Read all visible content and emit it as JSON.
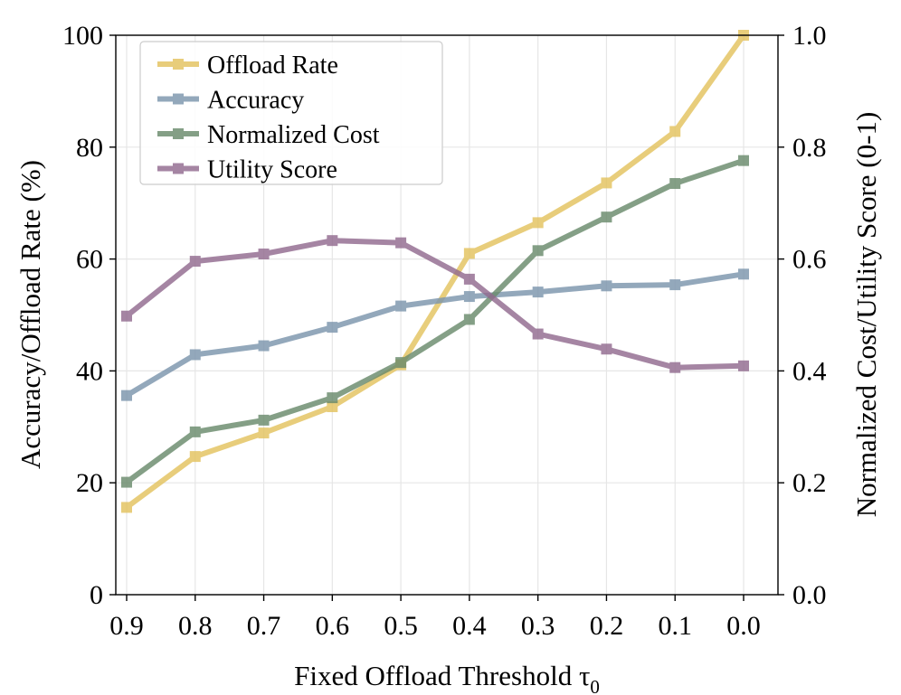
{
  "chart_data": {
    "type": "line",
    "x_axis": {
      "label_text": "Fixed Offload Threshold τ",
      "label_subscript": "0",
      "categories": [
        "0.9",
        "0.8",
        "0.7",
        "0.6",
        "0.5",
        "0.4",
        "0.3",
        "0.2",
        "0.1",
        "0.0"
      ],
      "values": [
        0.9,
        0.8,
        0.7,
        0.6,
        0.5,
        0.4,
        0.3,
        0.2,
        0.1,
        0.0
      ],
      "inverted": true
    },
    "y_left": {
      "label": "Accuracy/Offload Rate (%)",
      "range": [
        0,
        100
      ],
      "ticks": [
        0,
        20,
        40,
        60,
        80,
        100
      ],
      "tick_labels": [
        "0",
        "20",
        "40",
        "60",
        "80",
        "100"
      ]
    },
    "y_right": {
      "label": "Normalized Cost/Utility Score (0-1)",
      "range": [
        0.0,
        1.0
      ],
      "ticks": [
        0.0,
        0.2,
        0.4,
        0.6,
        0.8,
        1.0
      ],
      "tick_labels": [
        "0.0",
        "0.2",
        "0.4",
        "0.6",
        "0.8",
        "1.0"
      ]
    },
    "grid": true,
    "legend_position": "top-left",
    "series": [
      {
        "name": "Offload Rate",
        "axis": "left",
        "color": "#E3C35F",
        "values": [
          15.6,
          24.7,
          28.9,
          33.6,
          41.1,
          61.0,
          66.5,
          73.6,
          82.8,
          100.0
        ]
      },
      {
        "name": "Accuracy",
        "axis": "left",
        "color": "#7C95AD",
        "values": [
          35.6,
          42.9,
          44.5,
          47.8,
          51.6,
          53.3,
          54.1,
          55.2,
          55.4,
          57.3
        ]
      },
      {
        "name": "Normalized Cost",
        "axis": "right",
        "color": "#6A8B6C",
        "values": [
          0.201,
          0.291,
          0.312,
          0.352,
          0.415,
          0.492,
          0.615,
          0.675,
          0.735,
          0.776
        ]
      },
      {
        "name": "Utility Score",
        "axis": "right",
        "color": "#926B8F",
        "values": [
          0.498,
          0.596,
          0.609,
          0.633,
          0.629,
          0.564,
          0.466,
          0.439,
          0.406,
          0.409
        ]
      }
    ]
  }
}
